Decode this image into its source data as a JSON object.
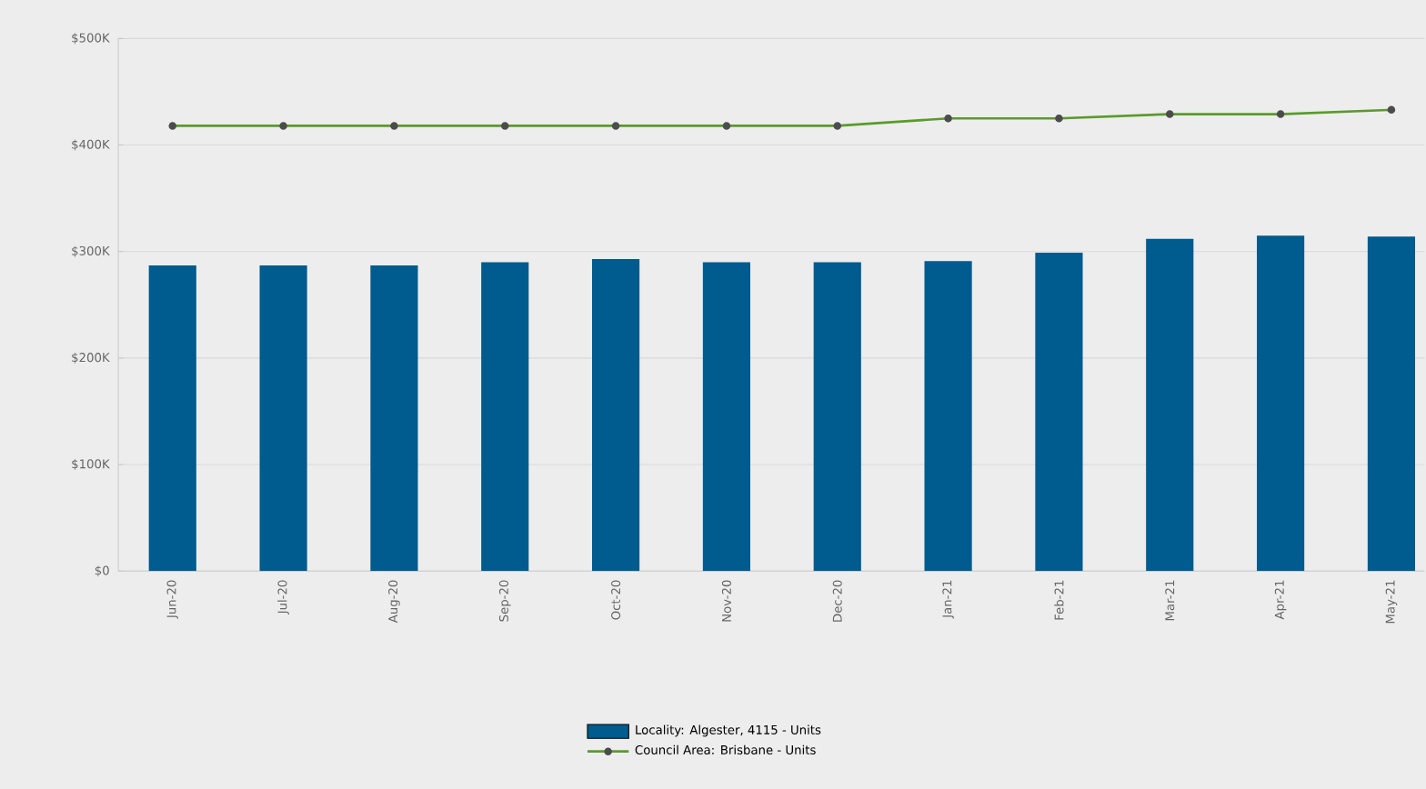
{
  "chart_data": {
    "type": "bar",
    "categories": [
      "Jun-20",
      "Jul-20",
      "Aug-20",
      "Sep-20",
      "Oct-20",
      "Nov-20",
      "Dec-20",
      "Jan-21",
      "Feb-21",
      "Mar-21",
      "Apr-21",
      "May-21"
    ],
    "series": [
      {
        "name": "Locality: Algester, 4115 - Units",
        "color": "#005b8e",
        "values": [
          287000,
          287000,
          287000,
          290000,
          293000,
          290000,
          290000,
          291000,
          299000,
          312000,
          315000,
          314000
        ]
      },
      {
        "name": "Council Area: Brisbane - Units",
        "type": "line",
        "color": "#5a9a2a",
        "marker": "circle",
        "values": [
          418000,
          418000,
          418000,
          418000,
          418000,
          418000,
          418000,
          425000,
          425000,
          429000,
          429000,
          433000
        ]
      }
    ],
    "ylim": [
      0,
      500000
    ],
    "yticks": [
      {
        "value": 0,
        "label": "$0"
      },
      {
        "value": 100000,
        "label": "$100K"
      },
      {
        "value": 200000,
        "label": "$200K"
      },
      {
        "value": 300000,
        "label": "$300K"
      },
      {
        "value": 400000,
        "label": "$400K"
      },
      {
        "value": 500000,
        "label": "$500K"
      }
    ],
    "grid": "y",
    "legend": "bottom"
  }
}
